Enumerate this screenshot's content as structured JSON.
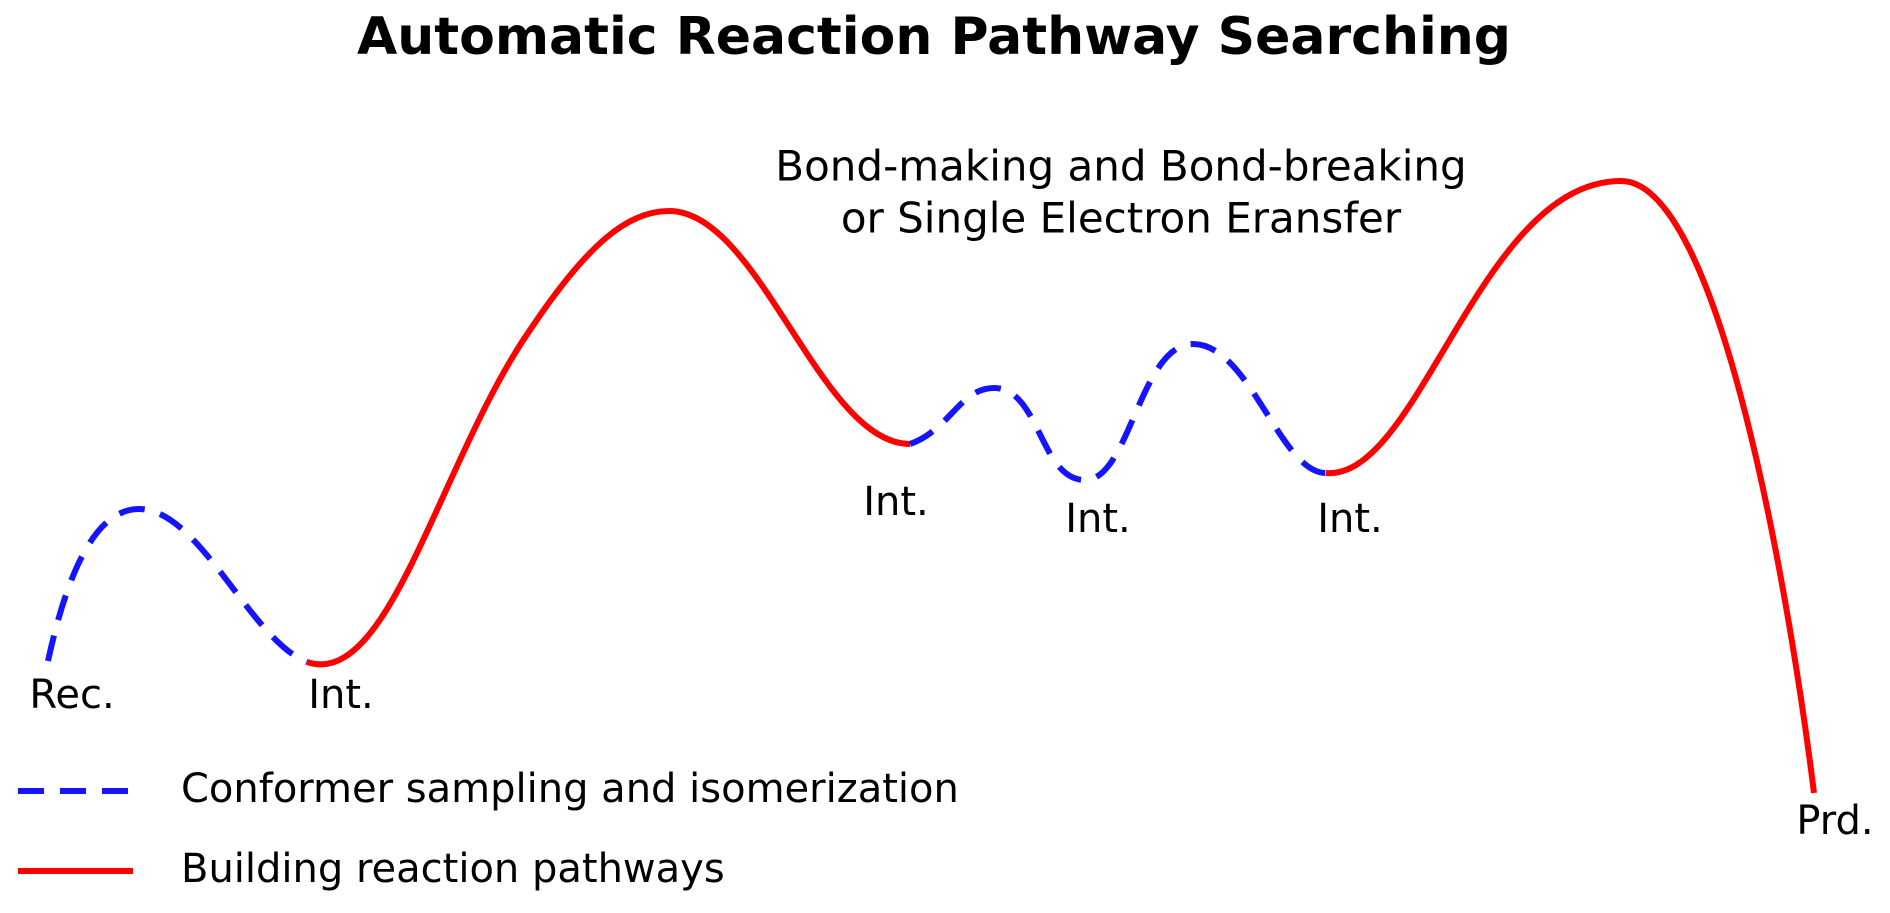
{
  "title": "Automatic Reaction Pathway Searching",
  "annotation": {
    "lines": [
      "Bond-making and Bond-breaking",
      "or Single Electron Eransfer"
    ]
  },
  "labels": [
    "Rec.",
    "Int.",
    "Int.",
    "Int.",
    "Int.",
    "Prd."
  ],
  "legend": {
    "entries": [
      "Conformer sampling and isomerization",
      "Building reaction pathways"
    ]
  }
}
